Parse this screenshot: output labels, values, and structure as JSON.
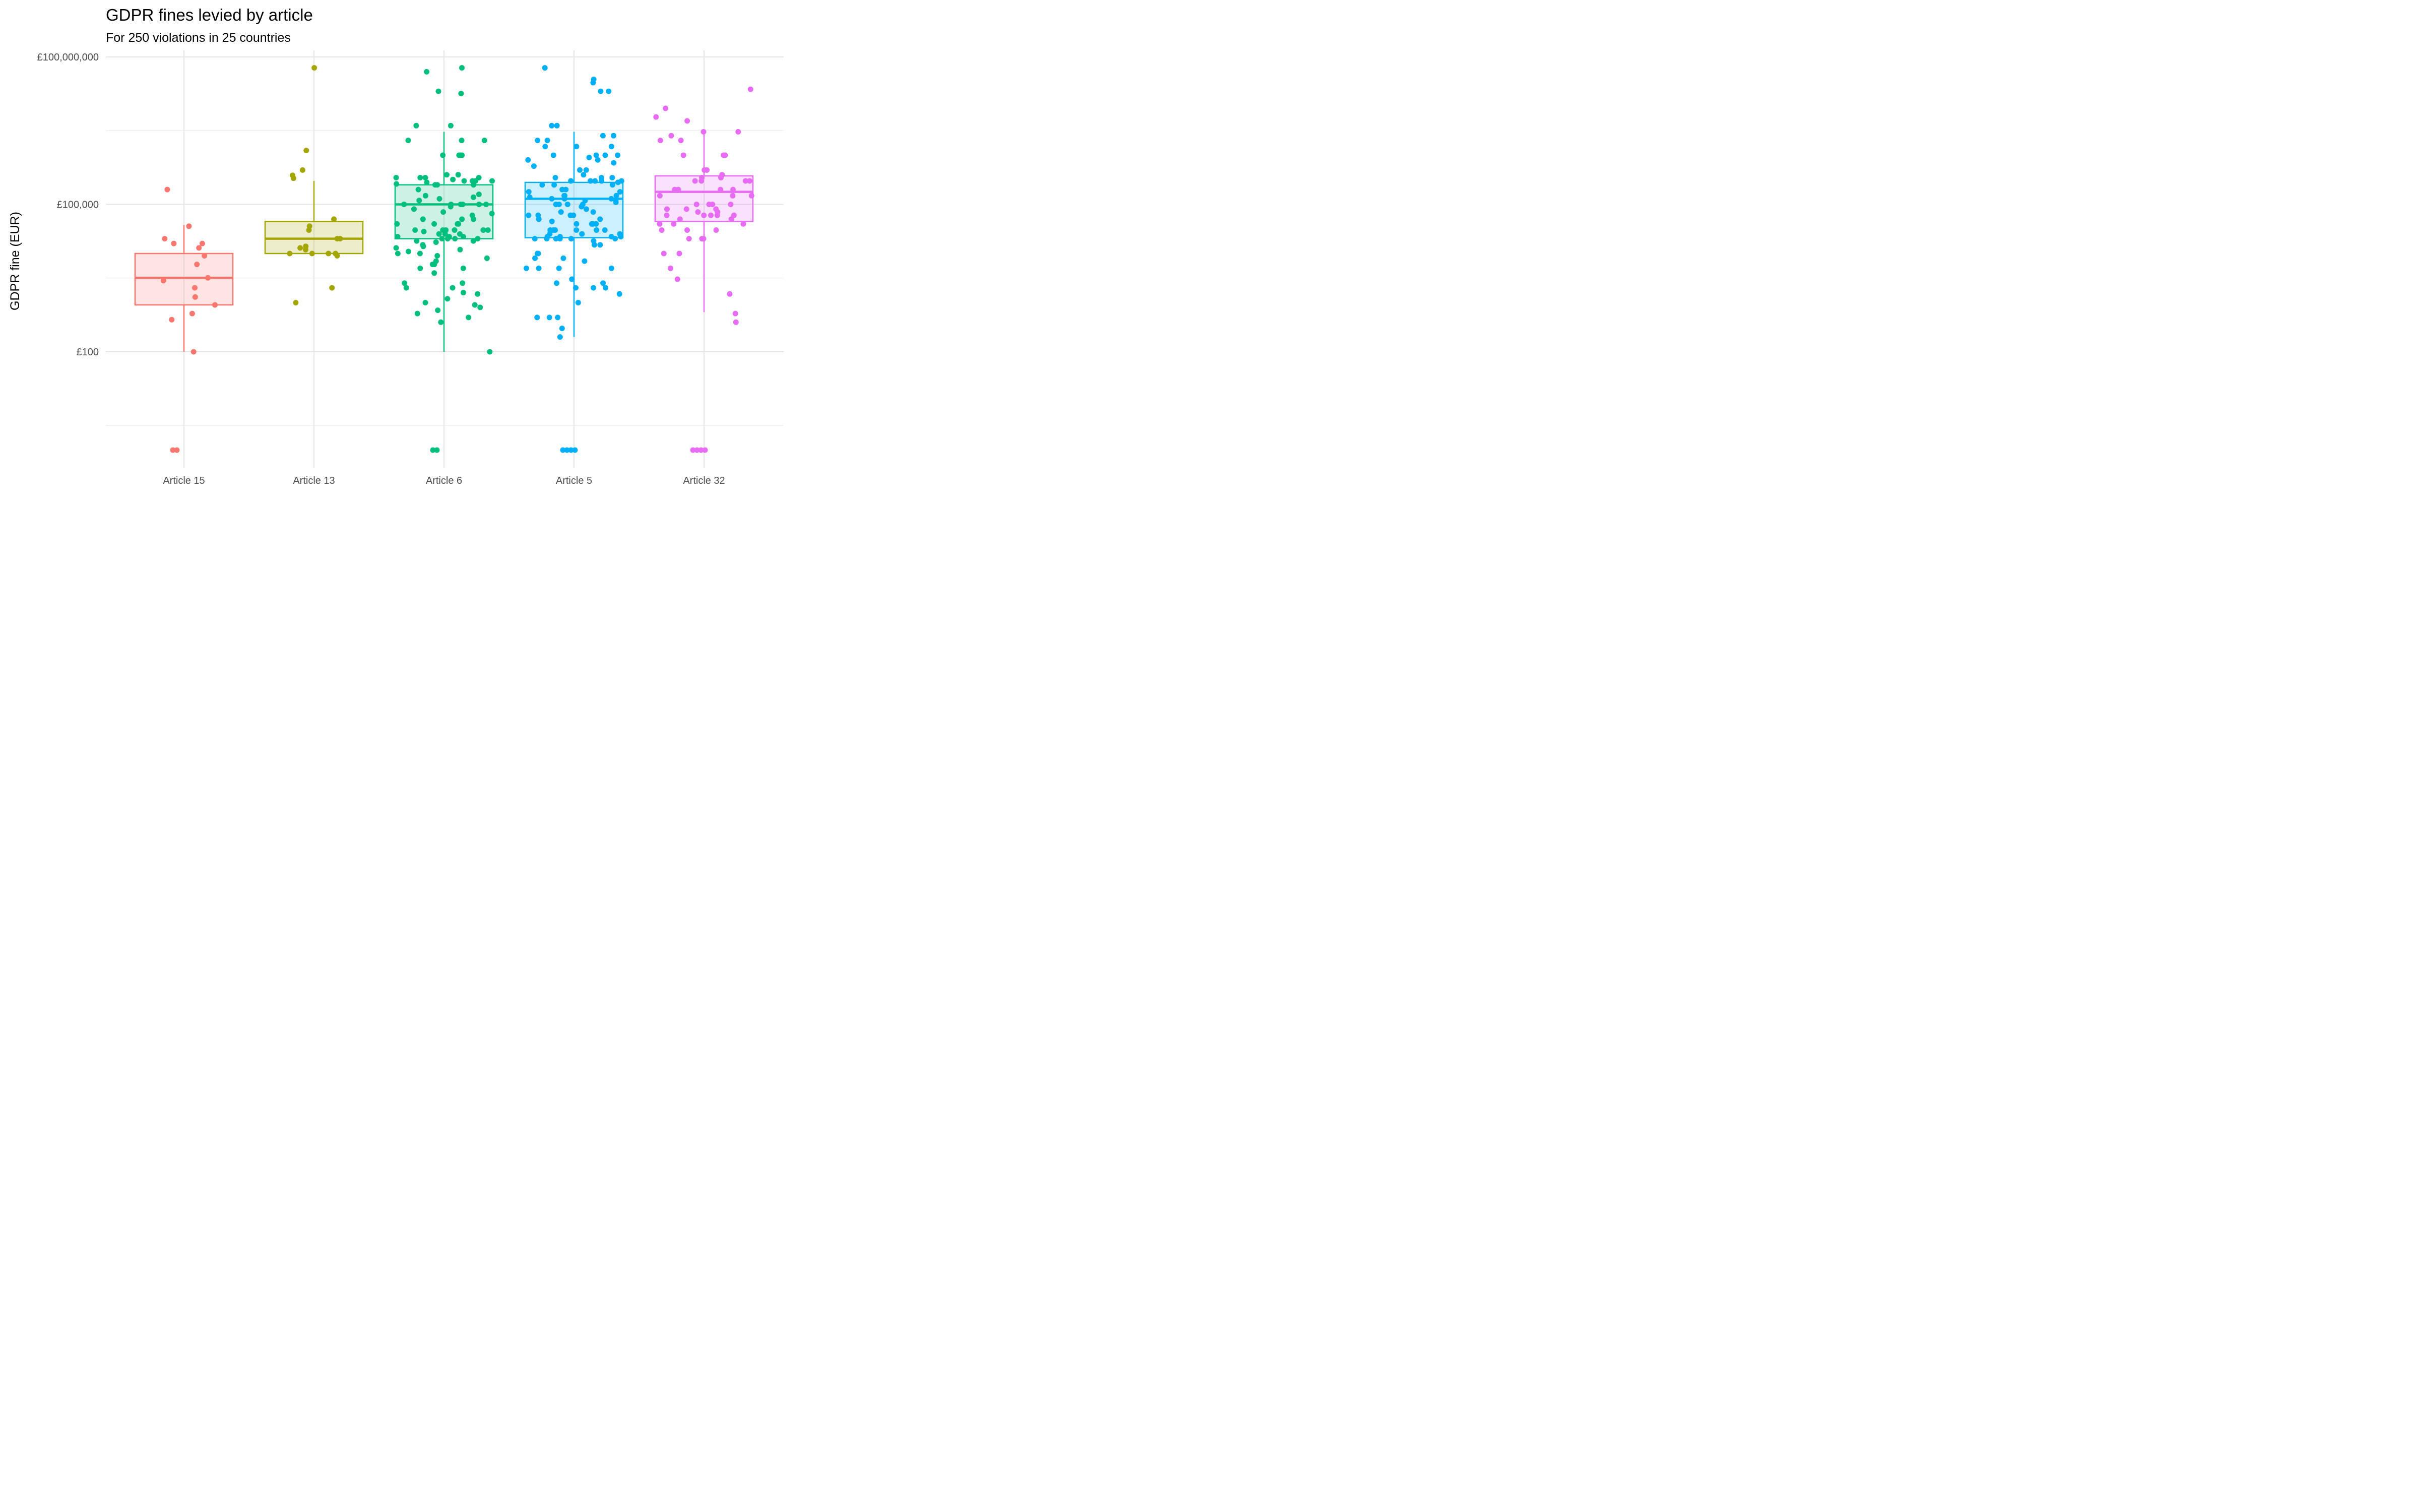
{
  "chart_data": {
    "type": "box",
    "title": "GDPR fines levied by article",
    "subtitle": "For 250 violations in 25 countries",
    "xlabel": "",
    "ylabel": "GDPR fine (EUR)",
    "y_scale": "log10",
    "ylim": [
      0.5,
      200000000
    ],
    "y_ticks": [
      {
        "value": 100,
        "label": "£100"
      },
      {
        "value": 100000,
        "label": "£100,000"
      },
      {
        "value": 100000000,
        "label": "£100,000,000"
      }
    ],
    "y_minor_ticks": [
      3.16,
      3162,
      3162278
    ],
    "grid": true,
    "legend": "none",
    "categories": [
      "Article 15",
      "Article 13",
      "Article 6",
      "Article 5",
      "Article 32"
    ],
    "colors": [
      "#F8766D",
      "#A3A500",
      "#00BF7D",
      "#00B0F6",
      "#E76BF3"
    ],
    "boxes": [
      {
        "category": "Article 15",
        "whisker_low": 100,
        "q1": 900,
        "median": 3200,
        "q3": 10000,
        "whisker_high": 38000
      },
      {
        "category": "Article 13",
        "whisker_low": 10000,
        "q1": 10000,
        "median": 20000,
        "q3": 45000,
        "whisker_high": 300000
      },
      {
        "category": "Article 6",
        "whisker_low": 100,
        "q1": 20000,
        "median": 100000,
        "q3": 250000,
        "whisker_high": 3000000
      },
      {
        "category": "Article 5",
        "whisker_low": 200,
        "q1": 21000,
        "median": 130000,
        "q3": 280000,
        "whisker_high": 3000000
      },
      {
        "category": "Article 32",
        "whisker_low": 640,
        "q1": 45000,
        "median": 180000,
        "q3": 380000,
        "whisker_high": 3000000
      }
    ],
    "points": [
      {
        "category": "Article 15",
        "values": [
          1,
          1,
          100,
          450,
          600,
          900,
          1300,
          2000,
          2800,
          3200,
          6000,
          9000,
          13000,
          16000,
          16000,
          20000,
          36000,
          200000
        ]
      },
      {
        "category": "Article 13",
        "values": [
          1000,
          2000,
          9000,
          10000,
          10000,
          10000,
          10000,
          12000,
          13000,
          14000,
          20000,
          20000,
          30000,
          36000,
          50000,
          340000,
          390000,
          500000,
          1250000,
          60000000
        ]
      },
      {
        "category": "Article 6",
        "values": [
          1,
          1,
          100,
          400,
          500,
          600,
          700,
          800,
          900,
          1000,
          1200,
          1500,
          1600,
          2000,
          2000,
          2500,
          2500,
          4000,
          5000,
          5000,
          6000,
          6000,
          7000,
          8000,
          9000,
          10000,
          10000,
          11000,
          12000,
          13000,
          14000,
          15000,
          17000,
          18000,
          18000,
          20000,
          20000,
          20000,
          20000,
          22000,
          22000,
          22000,
          25000,
          25000,
          25000,
          28000,
          30000,
          30000,
          30000,
          30000,
          30000,
          30000,
          40000,
          40000,
          40000,
          40000,
          50000,
          50000,
          50000,
          60000,
          65000,
          70000,
          80000,
          90000,
          100000,
          100000,
          100000,
          100000,
          100000,
          100000,
          100000,
          120000,
          130000,
          140000,
          150000,
          160000,
          200000,
          250000,
          250000,
          250000,
          260000,
          280000,
          300000,
          300000,
          300000,
          300000,
          320000,
          350000,
          350000,
          350000,
          350000,
          400000,
          400000,
          1000000,
          1000000,
          1000000,
          1000000,
          2000000,
          2000000,
          2000000,
          4000000,
          4000000,
          18000000,
          20000000,
          50000000,
          60000000
        ]
      },
      {
        "category": "Article 5",
        "values": [
          1,
          1,
          1,
          1,
          200,
          300,
          500,
          500,
          500,
          1000,
          1500,
          2000,
          2000,
          2000,
          2500,
          2500,
          3000,
          3000,
          5000,
          5000,
          5000,
          5000,
          7000,
          8000,
          8000,
          10000,
          10000,
          10000,
          15000,
          15000,
          18000,
          20000,
          20000,
          20000,
          20000,
          20000,
          20000,
          22000,
          22000,
          22000,
          22000,
          25000,
          25000,
          25000,
          30000,
          30000,
          30000,
          30000,
          30000,
          30000,
          40000,
          40000,
          40000,
          40000,
          45000,
          50000,
          50000,
          60000,
          60000,
          60000,
          60000,
          70000,
          70000,
          80000,
          90000,
          100000,
          100000,
          100000,
          100000,
          100000,
          110000,
          120000,
          120000,
          130000,
          130000,
          130000,
          140000,
          150000,
          150000,
          150000,
          180000,
          180000,
          200000,
          200000,
          250000,
          250000,
          250000,
          280000,
          300000,
          300000,
          300000,
          300000,
          300000,
          350000,
          350000,
          350000,
          400000,
          500000,
          500000,
          600000,
          700000,
          800000,
          800000,
          900000,
          1000000,
          1000000,
          1000000,
          1000000,
          1500000,
          1500000,
          1500000,
          2000000,
          2000000,
          2500000,
          2500000,
          4000000,
          4000000,
          20000000,
          20000000,
          30000000,
          35000000,
          60000000
        ]
      },
      {
        "category": "Article 32",
        "values": [
          1,
          1,
          1,
          1,
          400,
          600,
          1500,
          3000,
          5000,
          10000,
          10000,
          20000,
          20000,
          20000,
          30000,
          30000,
          30000,
          40000,
          40000,
          40000,
          50000,
          50000,
          60000,
          60000,
          60000,
          60000,
          60000,
          70000,
          70000,
          80000,
          80000,
          80000,
          100000,
          100000,
          100000,
          100000,
          150000,
          150000,
          150000,
          200000,
          200000,
          200000,
          200000,
          300000,
          300000,
          300000,
          300000,
          350000,
          350000,
          400000,
          500000,
          500000,
          1000000,
          1000000,
          1000000,
          2000000,
          2000000,
          2500000,
          3000000,
          3000000,
          5000000,
          6000000,
          9000000,
          22000000
        ]
      }
    ]
  }
}
